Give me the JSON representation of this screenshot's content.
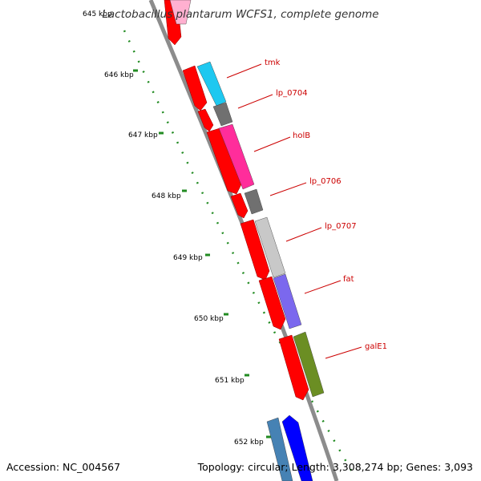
{
  "title": "Lactobacillus plantarum WCFS1, complete genome",
  "footer": {
    "accession": "Accession: NC_004567",
    "summary": "Topology: circular; Length: 3,308,274 bp; Genes: 3,093"
  },
  "ticks": [
    "645 kbp",
    "646 kbp",
    "647 kbp",
    "648 kbp",
    "649 kbp",
    "650 kbp",
    "651 kbp",
    "652 kbp"
  ],
  "gene_labels": [
    "tmk",
    "lp_0704",
    "holB",
    "lp_0706",
    "lp_0707",
    "fat",
    "galE1"
  ],
  "colors": {
    "backbone": "#8c8c8c",
    "tick": "#228b22",
    "label_line": "#cc0000",
    "red_gene": "#ff0000",
    "tmk": "#1ec8f0",
    "lp_0704": "#707070",
    "holB": "#ff2d9b",
    "lp_0706": "#707070",
    "lp_0707": "#c8c8c8",
    "fat": "#7b68ee",
    "galE1": "#6b8e23",
    "blue_gene": "#0000ff",
    "steel_gene": "#4682b4",
    "pink_gene": "#ffb0d0"
  }
}
